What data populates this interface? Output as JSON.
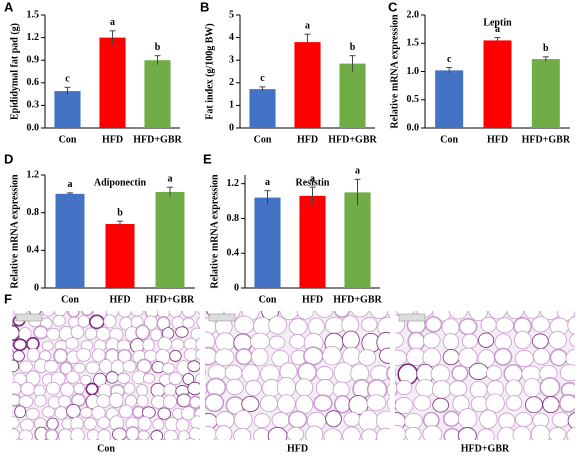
{
  "chart_data": [
    {
      "type": "bar",
      "label": "A",
      "ylabel": "Epididymal fat pad (g)",
      "categories": [
        "Con",
        "HFD",
        "HFD+GBR"
      ],
      "values": [
        0.49,
        1.2,
        0.9
      ],
      "errors": [
        0.05,
        0.09,
        0.06
      ],
      "significance": [
        "c",
        "a",
        "b"
      ],
      "colors": [
        "#4472c4",
        "#ff0000",
        "#70ad47"
      ],
      "ylim": [
        0,
        1.5
      ],
      "yticks": [
        {
          "value": 0,
          "label": "0.0"
        },
        0.3,
        0.6,
        0.9,
        1.2,
        1.5
      ]
    },
    {
      "type": "bar",
      "label": "B",
      "ylabel": "Fat index (g/100g BW)",
      "categories": [
        "Con",
        "HFD",
        "HFD+GBR"
      ],
      "values": [
        1.72,
        3.8,
        2.85
      ],
      "errors": [
        0.1,
        0.35,
        0.35
      ],
      "significance": [
        "c",
        "a",
        "b"
      ],
      "colors": [
        "#4472c4",
        "#ff0000",
        "#70ad47"
      ],
      "ylim": [
        0,
        5
      ],
      "yticks": [
        0,
        1,
        2,
        3,
        4,
        5
      ]
    },
    {
      "type": "bar",
      "label": "C",
      "title": "Leptin",
      "ylabel": "Relative mRNA expression",
      "categories": [
        "Con",
        "HFD",
        "HFD+GBR"
      ],
      "values": [
        1.02,
        1.55,
        1.22
      ],
      "errors": [
        0.05,
        0.05,
        0.04
      ],
      "significance": [
        "c",
        "a",
        "b"
      ],
      "colors": [
        "#4472c4",
        "#ff0000",
        "#70ad47"
      ],
      "ylim": [
        0,
        2
      ],
      "yticks": [
        {
          "value": 0,
          "label": "0.0"
        },
        0.5,
        {
          "value": 1,
          "label": "1.0"
        },
        1.5,
        {
          "value": 2,
          "label": "2.0"
        }
      ]
    },
    {
      "type": "bar",
      "label": "D",
      "title": "Adiponectin",
      "ylabel": "Relative mRNA expression",
      "categories": [
        "Con",
        "HFD",
        "HFD+GBR"
      ],
      "values": [
        1.0,
        0.68,
        1.02
      ],
      "errors": [
        0.01,
        0.03,
        0.05
      ],
      "significance": [
        "a",
        "b",
        "a"
      ],
      "colors": [
        "#4472c4",
        "#ff0000",
        "#70ad47"
      ],
      "ylim": [
        0,
        1.2
      ],
      "yticks": [
        0,
        0.4,
        0.8,
        1.2
      ]
    },
    {
      "type": "bar",
      "label": "E",
      "title": "Resistin",
      "ylabel": "Relative mRNA expression",
      "categories": [
        "Con",
        "HFD",
        "HFD+GBR"
      ],
      "values": [
        1.04,
        1.06,
        1.1
      ],
      "errors": [
        0.08,
        0.1,
        0.15
      ],
      "significance": [
        "a",
        "a",
        "a"
      ],
      "colors": [
        "#4472c4",
        "#ff0000",
        "#70ad47"
      ],
      "ylim": [
        0,
        1.3
      ],
      "yticks": [
        0,
        0.4,
        0.8,
        1.2
      ]
    }
  ],
  "histology": {
    "label": "F",
    "captions": [
      "Con",
      "HFD",
      "HFD+GBR"
    ]
  }
}
